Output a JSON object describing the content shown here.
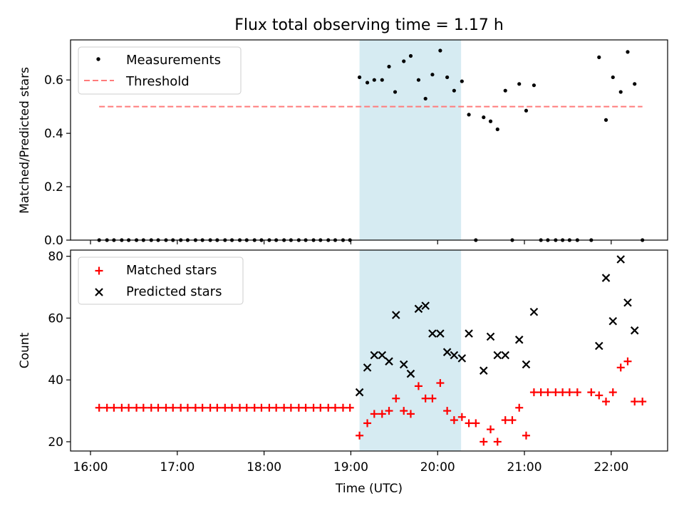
{
  "chart_data": [
    {
      "type": "scatter",
      "title": "Flux total observing time = 1.17 h",
      "ylabel": "Matched/Predicted stars",
      "xlabel": "",
      "x_unit": "hours UTC",
      "xlim": [
        15.77,
        22.65
      ],
      "ylim": [
        0,
        0.75
      ],
      "yticks": [
        0.0,
        0.2,
        0.4,
        0.6
      ],
      "ytick_labels": [
        "0.0",
        "0.2",
        "0.4",
        "0.6"
      ],
      "grid": false,
      "legend_position": "upper-left",
      "shaded_span": [
        19.1,
        20.27
      ],
      "shade_color": "#add8e6",
      "series": [
        {
          "name": "Measurements",
          "marker": "dot",
          "color": "#000000",
          "points": [
            [
              16.1,
              0
            ],
            [
              16.19,
              0
            ],
            [
              16.27,
              0
            ],
            [
              16.36,
              0
            ],
            [
              16.44,
              0
            ],
            [
              16.53,
              0
            ],
            [
              16.61,
              0
            ],
            [
              16.7,
              0
            ],
            [
              16.78,
              0
            ],
            [
              16.87,
              0
            ],
            [
              16.95,
              0
            ],
            [
              17.04,
              0
            ],
            [
              17.12,
              0
            ],
            [
              17.21,
              0
            ],
            [
              17.29,
              0
            ],
            [
              17.38,
              0
            ],
            [
              17.46,
              0
            ],
            [
              17.55,
              0
            ],
            [
              17.63,
              0
            ],
            [
              17.72,
              0
            ],
            [
              17.8,
              0
            ],
            [
              17.89,
              0
            ],
            [
              17.97,
              0
            ],
            [
              18.06,
              0
            ],
            [
              18.14,
              0
            ],
            [
              18.23,
              0
            ],
            [
              18.31,
              0
            ],
            [
              18.4,
              0
            ],
            [
              18.48,
              0
            ],
            [
              18.57,
              0
            ],
            [
              18.65,
              0
            ],
            [
              18.74,
              0
            ],
            [
              18.82,
              0
            ],
            [
              18.91,
              0
            ],
            [
              18.99,
              0
            ],
            [
              19.1,
              0.61
            ],
            [
              19.19,
              0.59
            ],
            [
              19.27,
              0.6
            ],
            [
              19.36,
              0.6
            ],
            [
              19.44,
              0.65
            ],
            [
              19.51,
              0.555
            ],
            [
              19.61,
              0.67
            ],
            [
              19.69,
              0.69
            ],
            [
              19.78,
              0.6
            ],
            [
              19.86,
              0.53
            ],
            [
              19.94,
              0.62
            ],
            [
              20.03,
              0.71
            ],
            [
              20.11,
              0.61
            ],
            [
              20.19,
              0.56
            ],
            [
              20.28,
              0.595
            ],
            [
              20.36,
              0.47
            ],
            [
              20.44,
              0
            ],
            [
              20.53,
              0.46
            ],
            [
              20.61,
              0.445
            ],
            [
              20.69,
              0.415
            ],
            [
              20.78,
              0.56
            ],
            [
              20.86,
              0
            ],
            [
              20.94,
              0.585
            ],
            [
              21.02,
              0.485
            ],
            [
              21.11,
              0.58
            ],
            [
              21.19,
              0
            ],
            [
              21.27,
              0
            ],
            [
              21.36,
              0
            ],
            [
              21.44,
              0
            ],
            [
              21.52,
              0
            ],
            [
              21.61,
              0
            ],
            [
              21.77,
              0
            ],
            [
              21.86,
              0.685
            ],
            [
              21.94,
              0.45
            ],
            [
              22.02,
              0.61
            ],
            [
              22.11,
              0.555
            ],
            [
              22.19,
              0.705
            ],
            [
              22.27,
              0.585
            ],
            [
              22.36,
              0
            ]
          ]
        },
        {
          "name": "Threshold",
          "marker": "dashed-line",
          "color": "#ff7b7b",
          "points": [
            [
              16.1,
              0.5
            ],
            [
              22.36,
              0.5
            ]
          ]
        }
      ]
    },
    {
      "type": "scatter",
      "title": "",
      "ylabel": "Count",
      "xlabel": "Time (UTC)",
      "x_unit": "hours UTC",
      "xlim": [
        15.77,
        22.65
      ],
      "xticks": [
        16,
        17,
        18,
        19,
        20,
        21,
        22
      ],
      "xtick_labels": [
        "16:00",
        "17:00",
        "18:00",
        "19:00",
        "20:00",
        "21:00",
        "22:00"
      ],
      "ylim": [
        17,
        82
      ],
      "yticks": [
        20,
        40,
        60,
        80
      ],
      "ytick_labels": [
        "20",
        "40",
        "60",
        "80"
      ],
      "grid": false,
      "legend_position": "upper-left",
      "shaded_span": [
        19.1,
        20.27
      ],
      "shade_color": "#add8e6",
      "series": [
        {
          "name": "Matched stars",
          "marker": "plus",
          "color": "#ff0000",
          "points": [
            [
              16.1,
              31
            ],
            [
              16.19,
              31
            ],
            [
              16.27,
              31
            ],
            [
              16.36,
              31
            ],
            [
              16.44,
              31
            ],
            [
              16.53,
              31
            ],
            [
              16.61,
              31
            ],
            [
              16.7,
              31
            ],
            [
              16.78,
              31
            ],
            [
              16.87,
              31
            ],
            [
              16.95,
              31
            ],
            [
              17.04,
              31
            ],
            [
              17.12,
              31
            ],
            [
              17.21,
              31
            ],
            [
              17.29,
              31
            ],
            [
              17.38,
              31
            ],
            [
              17.46,
              31
            ],
            [
              17.55,
              31
            ],
            [
              17.63,
              31
            ],
            [
              17.72,
              31
            ],
            [
              17.8,
              31
            ],
            [
              17.89,
              31
            ],
            [
              17.97,
              31
            ],
            [
              18.06,
              31
            ],
            [
              18.14,
              31
            ],
            [
              18.23,
              31
            ],
            [
              18.31,
              31
            ],
            [
              18.4,
              31
            ],
            [
              18.48,
              31
            ],
            [
              18.57,
              31
            ],
            [
              18.65,
              31
            ],
            [
              18.74,
              31
            ],
            [
              18.82,
              31
            ],
            [
              18.91,
              31
            ],
            [
              18.99,
              31
            ],
            [
              19.1,
              22
            ],
            [
              19.19,
              26
            ],
            [
              19.27,
              29
            ],
            [
              19.36,
              29
            ],
            [
              19.44,
              30
            ],
            [
              19.52,
              34
            ],
            [
              19.61,
              30
            ],
            [
              19.69,
              29
            ],
            [
              19.78,
              38
            ],
            [
              19.86,
              34
            ],
            [
              19.94,
              34
            ],
            [
              20.03,
              39
            ],
            [
              20.11,
              30
            ],
            [
              20.19,
              27
            ],
            [
              20.28,
              28
            ],
            [
              20.36,
              26
            ],
            [
              20.44,
              26
            ],
            [
              20.53,
              20
            ],
            [
              20.61,
              24
            ],
            [
              20.69,
              20
            ],
            [
              20.78,
              27
            ],
            [
              20.86,
              27
            ],
            [
              20.94,
              31
            ],
            [
              21.02,
              22
            ],
            [
              21.11,
              36
            ],
            [
              21.19,
              36
            ],
            [
              21.27,
              36
            ],
            [
              21.36,
              36
            ],
            [
              21.44,
              36
            ],
            [
              21.52,
              36
            ],
            [
              21.61,
              36
            ],
            [
              21.77,
              36
            ],
            [
              21.86,
              35
            ],
            [
              21.94,
              33
            ],
            [
              22.02,
              36
            ],
            [
              22.11,
              44
            ],
            [
              22.19,
              46
            ],
            [
              22.27,
              33
            ],
            [
              22.36,
              33
            ]
          ]
        },
        {
          "name": "Predicted stars",
          "marker": "x",
          "color": "#000000",
          "points": [
            [
              19.1,
              36
            ],
            [
              19.19,
              44
            ],
            [
              19.27,
              48
            ],
            [
              19.36,
              48
            ],
            [
              19.44,
              46
            ],
            [
              19.52,
              61
            ],
            [
              19.61,
              45
            ],
            [
              19.69,
              42
            ],
            [
              19.78,
              63
            ],
            [
              19.86,
              64
            ],
            [
              19.94,
              55
            ],
            [
              20.03,
              55
            ],
            [
              20.11,
              49
            ],
            [
              20.19,
              48
            ],
            [
              20.28,
              47
            ],
            [
              20.36,
              55
            ],
            [
              20.53,
              43
            ],
            [
              20.61,
              54
            ],
            [
              20.69,
              48
            ],
            [
              20.78,
              48
            ],
            [
              20.94,
              53
            ],
            [
              21.02,
              45
            ],
            [
              21.11,
              62
            ],
            [
              21.86,
              51
            ],
            [
              21.94,
              73
            ],
            [
              22.02,
              59
            ],
            [
              22.11,
              79
            ],
            [
              22.19,
              65
            ],
            [
              22.27,
              56
            ]
          ]
        }
      ]
    }
  ]
}
